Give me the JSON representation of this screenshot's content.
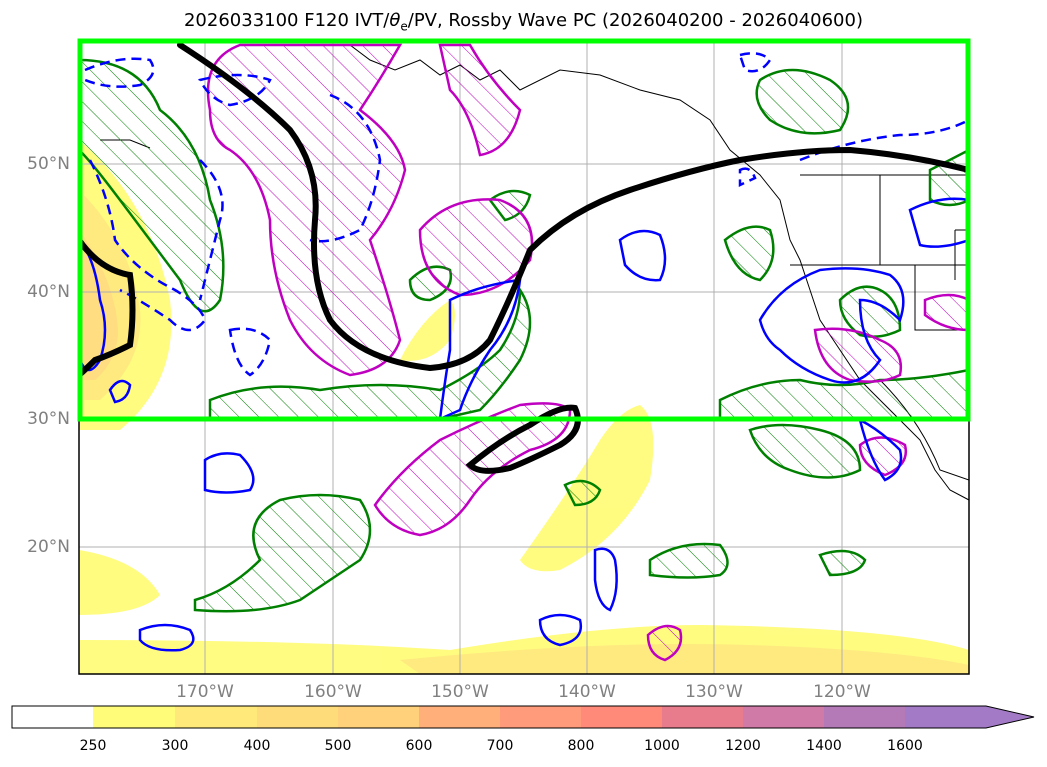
{
  "title": {
    "prefix": "2026033100 F120 IVT/",
    "theta": "θ",
    "sub": "e",
    "suffix": "/PV, Rossby Wave PC (2026040200 - 2026040600)"
  },
  "map": {
    "lat_labels": [
      "50°N",
      "40°N",
      "30°N",
      "20°N"
    ],
    "lon_labels": [
      "170°W",
      "160°W",
      "150°W",
      "140°W",
      "130°W",
      "120°W"
    ],
    "highlight_box_color": "#00ff00",
    "contour_colors": {
      "ivt_fill": "#ffff80",
      "theta_e": "#008000",
      "pv_positive": "#c000c0",
      "pc_negative": "#0000ff",
      "wave_line": "#000000"
    }
  },
  "colorbar": {
    "ticks": [
      "250",
      "300",
      "400",
      "500",
      "600",
      "700",
      "800",
      "1000",
      "1200",
      "1400",
      "1600"
    ],
    "colors": [
      "#ffffff",
      "#fffc7a",
      "#ffe97a",
      "#ffdc7a",
      "#ffd17a",
      "#ffb07a",
      "#ff9a7a",
      "#ff8a7a",
      "#e87c8c",
      "#d07aa8",
      "#b47ab8",
      "#a27ac6"
    ]
  }
}
